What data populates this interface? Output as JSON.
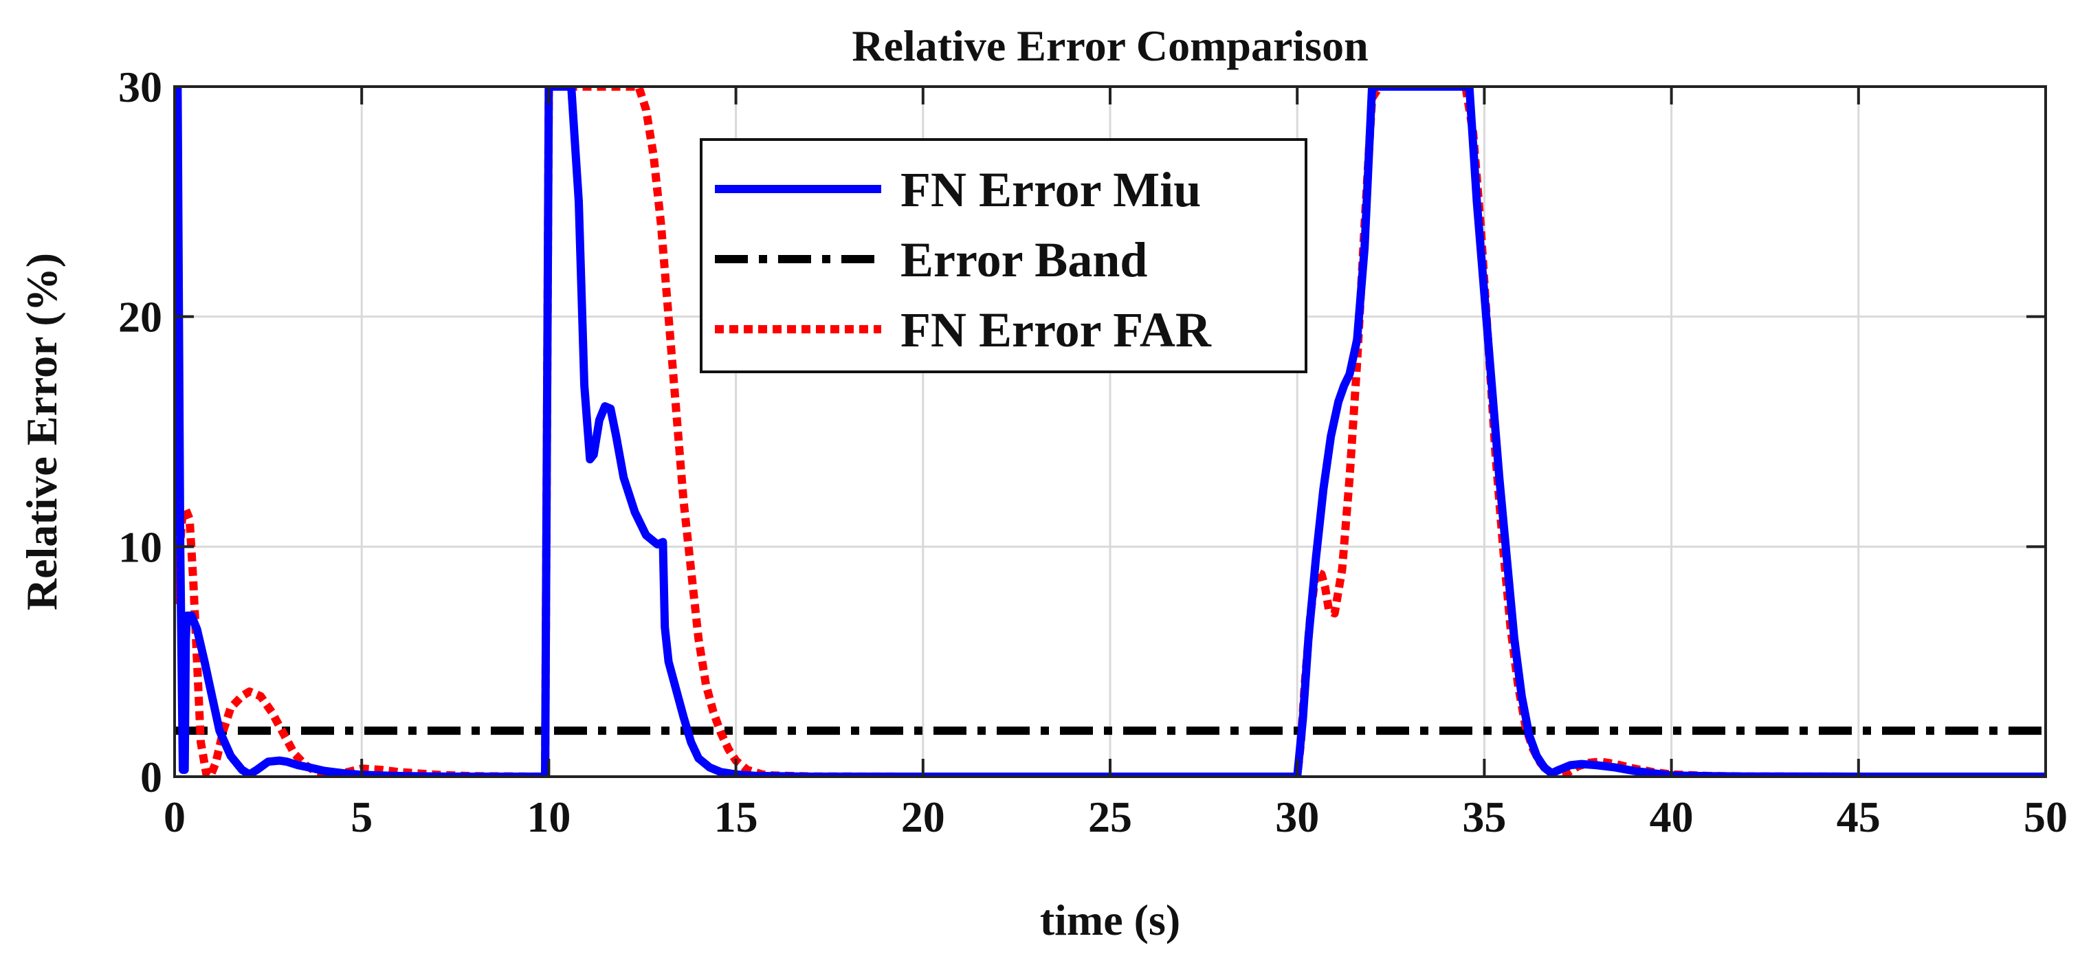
{
  "chart_data": {
    "type": "line",
    "title": "Relative Error Comparison",
    "xlabel": "time (s)",
    "ylabel": "Relative Error (%)",
    "xlim": [
      0,
      50
    ],
    "ylim": [
      0,
      30
    ],
    "xticks": [
      0,
      5,
      10,
      15,
      20,
      25,
      30,
      35,
      40,
      45,
      50
    ],
    "yticks": [
      0,
      10,
      20,
      30
    ],
    "grid": true,
    "legend_position": "top-center",
    "series": [
      {
        "name": "FN Error Miu",
        "color": "#0000FF",
        "style": "solid",
        "x": [
          0,
          0.08,
          0.15,
          0.22,
          0.27,
          0.3,
          0.33,
          0.45,
          0.6,
          0.8,
          1.0,
          1.2,
          1.5,
          1.8,
          2.0,
          2.2,
          2.5,
          2.8,
          3.0,
          3.3,
          3.6,
          4.0,
          4.5,
          5.0,
          5.5,
          6.0,
          7.0,
          8.0,
          9.0,
          9.9,
          10.0,
          10.05,
          10.6,
          10.8,
          10.95,
          11.1,
          11.2,
          11.35,
          11.5,
          11.65,
          11.8,
          12.0,
          12.3,
          12.6,
          12.9,
          13.05,
          13.1,
          13.2,
          13.4,
          13.6,
          13.8,
          14.0,
          14.3,
          14.6,
          15.0,
          15.5,
          16.0,
          17.0,
          20.0,
          25.0,
          29.9,
          30.0,
          30.15,
          30.3,
          30.5,
          30.7,
          30.9,
          31.1,
          31.25,
          31.4,
          31.6,
          31.8,
          32.0,
          32.2,
          34.4,
          34.6,
          34.8,
          35.0,
          35.2,
          35.4,
          35.6,
          35.8,
          36.0,
          36.2,
          36.4,
          36.6,
          36.8,
          37.0,
          37.3,
          37.6,
          38.0,
          38.5,
          39.0,
          39.5,
          40.0,
          41.0,
          42.0,
          45.0,
          50.0
        ],
        "y": [
          30,
          30,
          10,
          0.3,
          0.3,
          6,
          7.0,
          7.0,
          6.4,
          5.0,
          3.5,
          2.0,
          0.9,
          0.3,
          0.1,
          0.3,
          0.65,
          0.7,
          0.65,
          0.5,
          0.4,
          0.25,
          0.15,
          0.08,
          0.05,
          0.03,
          0.01,
          0,
          0,
          0,
          30,
          30,
          30,
          25,
          17,
          13.8,
          14.0,
          15.5,
          16.1,
          16.0,
          14.8,
          13.0,
          11.5,
          10.5,
          10.1,
          10.2,
          6.5,
          5.0,
          3.8,
          2.6,
          1.5,
          0.8,
          0.4,
          0.2,
          0.1,
          0.04,
          0.02,
          0,
          0,
          0,
          0,
          0,
          2.5,
          6.0,
          9.5,
          12.5,
          14.8,
          16.3,
          17.0,
          17.5,
          19.0,
          23.0,
          30,
          30,
          30,
          30,
          25,
          21,
          17,
          13,
          9.5,
          6.0,
          3.5,
          1.8,
          0.9,
          0.4,
          0.15,
          0.3,
          0.5,
          0.55,
          0.5,
          0.4,
          0.25,
          0.15,
          0.05,
          0.02,
          0.01,
          0,
          0
        ]
      },
      {
        "name": "Error Band",
        "color": "#000000",
        "style": "dash-dot",
        "x": [
          0,
          50
        ],
        "y": [
          2,
          2
        ]
      },
      {
        "name": "FN Error FAR",
        "color": "#FF0000",
        "style": "dotted",
        "x": [
          0,
          0.04,
          0.07,
          0.12,
          0.2,
          0.3,
          0.4,
          0.5,
          0.6,
          0.7,
          0.85,
          0.95,
          1.1,
          1.3,
          1.5,
          1.8,
          2.0,
          2.3,
          2.6,
          2.9,
          3.2,
          3.5,
          3.8,
          4.1,
          4.5,
          5.0,
          5.5,
          6.0,
          7.0,
          8.0,
          9.9,
          10.0,
          10.1,
          12.4,
          12.6,
          12.8,
          13.0,
          13.2,
          13.4,
          13.6,
          13.8,
          14.0,
          14.2,
          14.4,
          14.6,
          14.8,
          15.0,
          15.3,
          15.7,
          16.0,
          17.0,
          20.0,
          25.0,
          29.9,
          30.0,
          30.1,
          30.2,
          30.35,
          30.5,
          30.65,
          30.75,
          30.85,
          31.0,
          31.2,
          31.4,
          31.6,
          31.8,
          32.0,
          32.2,
          34.5,
          34.7,
          34.9,
          35.1,
          35.3,
          35.5,
          35.7,
          35.9,
          36.1,
          36.3,
          36.5,
          36.7,
          36.9,
          37.2,
          37.5,
          37.8,
          38.1,
          38.5,
          39.0,
          39.5,
          40.0,
          41.0,
          42.0,
          45.0,
          50.0
        ],
        "y": [
          7.5,
          28,
          7.8,
          9.5,
          11.2,
          11.6,
          11.2,
          8.5,
          5.0,
          1.5,
          0.1,
          0,
          0.6,
          2.0,
          3.0,
          3.5,
          3.7,
          3.5,
          2.8,
          1.9,
          1.0,
          0.5,
          0.2,
          0.05,
          0.15,
          0.35,
          0.3,
          0.2,
          0.08,
          0.02,
          0,
          30,
          30,
          30,
          29,
          27,
          24,
          20,
          16,
          12,
          9.0,
          6.0,
          4.0,
          2.8,
          1.9,
          1.2,
          0.7,
          0.3,
          0.1,
          0.05,
          0.01,
          0,
          0,
          0,
          0,
          1.5,
          4.0,
          7.0,
          8.9,
          8.8,
          8.2,
          7.2,
          7.1,
          9.0,
          13.0,
          18.0,
          24.0,
          29.5,
          30,
          30,
          28,
          24,
          19,
          14,
          10,
          6.5,
          4.0,
          2.2,
          1.2,
          0.6,
          0.25,
          0.1,
          0.15,
          0.45,
          0.6,
          0.65,
          0.55,
          0.35,
          0.2,
          0.1,
          0.03,
          0.01,
          0,
          0
        ]
      }
    ]
  }
}
